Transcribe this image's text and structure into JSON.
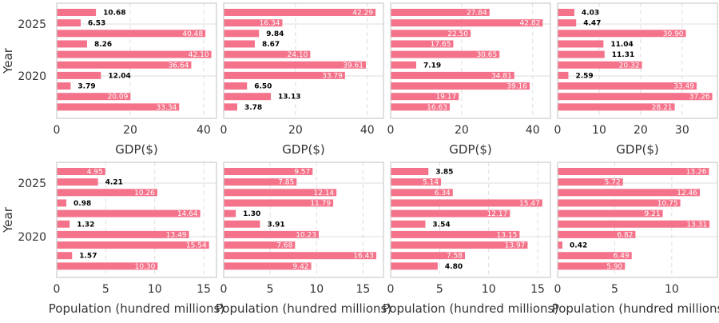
{
  "colors": {
    "bar": "#f4738a",
    "frame": "#cccccc",
    "grid": "#dddddd",
    "text": "#333333",
    "label_inside": "#ffffff",
    "label_outside": "#000000"
  },
  "chart_data": [
    {
      "type": "bar",
      "orientation": "horizontal",
      "xlabel": "GDP($)",
      "ylabel": "Year",
      "xlim": [
        0,
        43.5
      ],
      "xticks": [
        0,
        20,
        40
      ],
      "yticks": [
        2025,
        2020
      ],
      "values": [
        10.68,
        6.53,
        40.48,
        8.26,
        42.1,
        36.64,
        12.04,
        3.79,
        20.09,
        33.34
      ],
      "grid": true
    },
    {
      "type": "bar",
      "orientation": "horizontal",
      "xlabel": "GDP($)",
      "ylabel": "",
      "xlim": [
        0,
        44.5
      ],
      "xticks": [
        0,
        20,
        40
      ],
      "values": [
        42.29,
        16.34,
        9.84,
        8.67,
        24.1,
        39.61,
        33.79,
        6.5,
        13.13,
        3.78
      ],
      "grid": true
    },
    {
      "type": "bar",
      "orientation": "horizontal",
      "xlabel": "GDP($)",
      "ylabel": "",
      "xlim": [
        0,
        45
      ],
      "xticks": [
        0,
        20,
        40
      ],
      "values": [
        27.84,
        42.82,
        22.5,
        17.65,
        30.65,
        7.19,
        34.81,
        39.16,
        19.17,
        16.63
      ],
      "grid": true
    },
    {
      "type": "bar",
      "orientation": "horizontal",
      "xlabel": "GDP($)",
      "ylabel": "",
      "xlim": [
        0,
        38.5
      ],
      "xticks": [
        0,
        10,
        20,
        30
      ],
      "values": [
        4.03,
        4.47,
        30.9,
        11.04,
        11.31,
        20.32,
        2.59,
        33.49,
        37.26,
        28.21
      ],
      "grid": true
    },
    {
      "type": "bar",
      "orientation": "horizontal",
      "xlabel": "Population (hundred millions)",
      "ylabel": "Year",
      "xlim": [
        0,
        16.3
      ],
      "xticks": [
        0,
        5,
        10,
        15
      ],
      "yticks": [
        2025,
        2020
      ],
      "values": [
        4.95,
        4.21,
        10.26,
        0.98,
        14.64,
        1.32,
        13.49,
        15.54,
        1.57,
        10.3
      ],
      "grid": true
    },
    {
      "type": "bar",
      "orientation": "horizontal",
      "xlabel": "Population (hundred millions)",
      "ylabel": "",
      "xlim": [
        0,
        17.2
      ],
      "xticks": [
        0,
        5,
        10,
        15
      ],
      "values": [
        9.57,
        7.85,
        12.14,
        11.79,
        1.3,
        3.91,
        10.23,
        7.68,
        16.43,
        9.42
      ],
      "grid": true
    },
    {
      "type": "bar",
      "orientation": "horizontal",
      "xlabel": "Population (hundred millions)",
      "ylabel": "",
      "xlim": [
        0,
        16.3
      ],
      "xticks": [
        0,
        5,
        10,
        15
      ],
      "values": [
        3.85,
        5.14,
        6.34,
        15.47,
        12.17,
        3.54,
        13.15,
        13.97,
        7.58,
        4.8
      ],
      "grid": true
    },
    {
      "type": "bar",
      "orientation": "horizontal",
      "xlabel": "Population (hundred millions",
      "ylabel": "",
      "xlim": [
        0,
        14
      ],
      "xticks": [
        0,
        5,
        10
      ],
      "values": [
        13.26,
        5.72,
        12.46,
        10.75,
        9.21,
        13.31,
        6.82,
        0.42,
        6.49,
        5.9
      ],
      "grid": true
    }
  ]
}
